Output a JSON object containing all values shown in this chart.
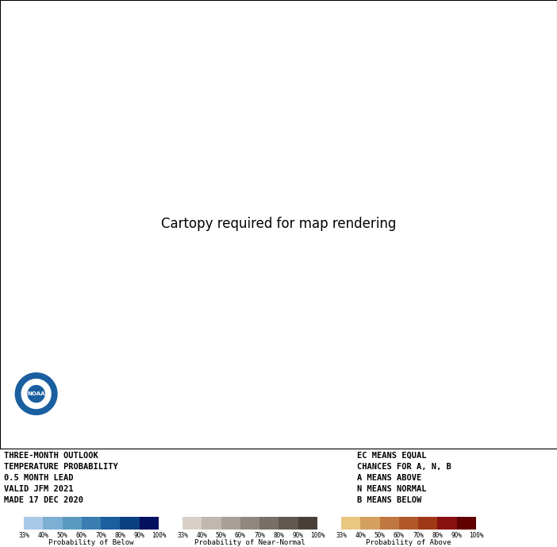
{
  "title_lines": [
    "THREE-MONTH OUTLOOK",
    "TEMPERATURE PROBABILITY",
    "0.5 MONTH LEAD",
    "VALID JFM 2021",
    "MADE 17 DEC 2020"
  ],
  "legend_note_lines": [
    "EC MEANS EQUAL",
    "CHANCES FOR A, N, B",
    "A MEANS ABOVE",
    "N MEANS NORMAL",
    "B MEANS BELOW"
  ],
  "below_colors": [
    "#a8c8e8",
    "#7bafd4",
    "#5a9ac0",
    "#3a7db0",
    "#1a5fa0",
    "#0a3f80",
    "#041060"
  ],
  "below_labels": [
    "33%",
    "40%",
    "50%",
    "60%",
    "70%",
    "80%",
    "90%",
    "100%"
  ],
  "near_normal_colors": [
    "#d8d0c8",
    "#c0b8b0",
    "#a8a098",
    "#908880",
    "#787068",
    "#605850",
    "#484038"
  ],
  "near_normal_labels": [
    "33%",
    "40%",
    "50%",
    "60%",
    "70%",
    "80%",
    "90%",
    "100%"
  ],
  "above_colors": [
    "#e8c880",
    "#d4a060",
    "#c07840",
    "#b05828",
    "#a03818",
    "#881010",
    "#600000"
  ],
  "above_labels": [
    "33%",
    "40%",
    "50%",
    "60%",
    "70%",
    "80%",
    "90%",
    "100%"
  ],
  "background_color": "#ffffff",
  "map_background": "#ffffff",
  "ocean_color": "#ffffff",
  "land_outline_color": "#000000",
  "noaa_logo_color": "#1a5fa0"
}
